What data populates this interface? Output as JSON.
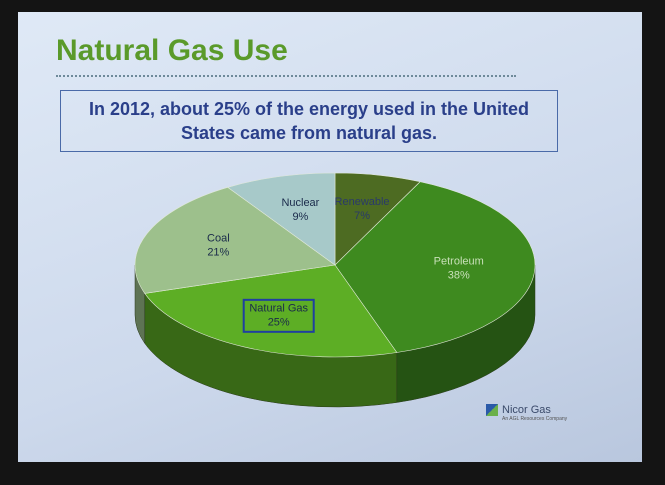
{
  "title": "Natural Gas Use",
  "subtitle": "In 2012, about 25% of the energy used in the United States came from natural gas.",
  "chart_data": {
    "type": "pie",
    "categories": [
      "Renewable",
      "Petroleum",
      "Natural Gas",
      "Coal",
      "Nuclear"
    ],
    "values": [
      7,
      38,
      25,
      21,
      9
    ],
    "value_labels": [
      "7%",
      "38%",
      "25%",
      "21%",
      "9%"
    ],
    "colors": [
      "#4d6b22",
      "#3e8a1f",
      "#5dae25",
      "#9dc08c",
      "#a7c9c9"
    ],
    "highlight": "Natural Gas"
  },
  "logo": {
    "name": "Nicor Gas",
    "tagline": "An AGL Resources Company"
  }
}
